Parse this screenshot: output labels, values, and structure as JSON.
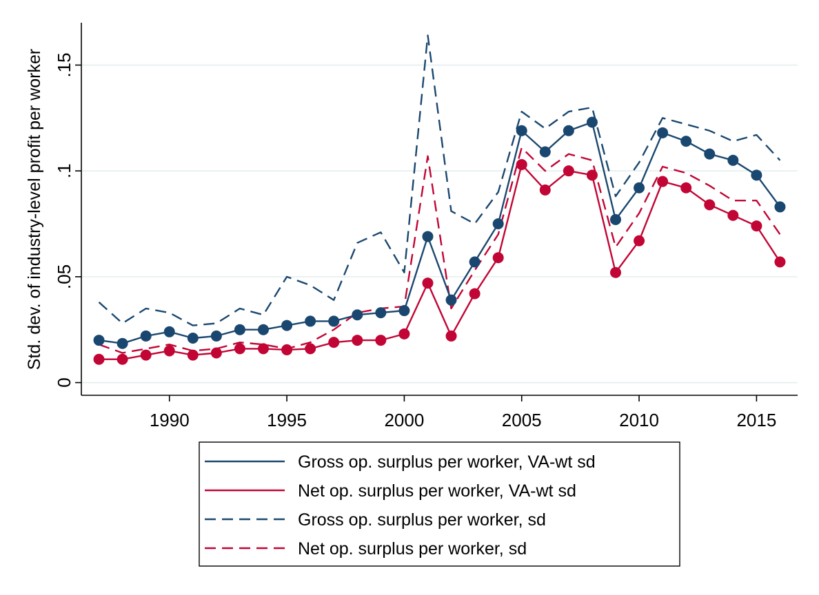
{
  "chart_data": {
    "type": "line",
    "title": "",
    "xlabel": "",
    "ylabel": "Std. dev. of industry-level profit per worker",
    "x": [
      1987,
      1988,
      1989,
      1990,
      1991,
      1992,
      1993,
      1994,
      1995,
      1996,
      1997,
      1998,
      1999,
      2000,
      2001,
      2002,
      2003,
      2004,
      2005,
      2006,
      2007,
      2008,
      2009,
      2010,
      2011,
      2012,
      2013,
      2014,
      2015,
      2016
    ],
    "xlim": [
      1986.25,
      2016.75
    ],
    "ylim": [
      -0.006,
      0.17
    ],
    "x_ticks": [
      1990,
      1995,
      2000,
      2005,
      2010,
      2015
    ],
    "x_tick_labels": [
      "1990",
      "1995",
      "2000",
      "2005",
      "2010",
      "2015"
    ],
    "y_ticks": [
      0,
      0.05,
      0.1,
      0.15
    ],
    "y_tick_labels": [
      "0",
      ".05",
      ".1",
      ".15"
    ],
    "grid": true,
    "legend_position": "bottom",
    "series": [
      {
        "name": "Gross op. surplus per worker, VA-wt sd",
        "color": "#1a476f",
        "dash": "solid",
        "markers": true,
        "values": [
          0.02,
          0.0185,
          0.022,
          0.024,
          0.021,
          0.022,
          0.025,
          0.025,
          0.027,
          0.029,
          0.029,
          0.032,
          0.033,
          0.034,
          0.069,
          0.039,
          0.057,
          0.075,
          0.119,
          0.109,
          0.119,
          0.123,
          0.077,
          0.092,
          0.118,
          0.114,
          0.108,
          0.105,
          0.098,
          0.083
        ]
      },
      {
        "name": "Net op. surplus per worker, VA-wt sd",
        "color": "#c10534",
        "dash": "solid",
        "markers": true,
        "values": [
          0.011,
          0.011,
          0.013,
          0.015,
          0.013,
          0.014,
          0.016,
          0.016,
          0.0155,
          0.016,
          0.019,
          0.02,
          0.02,
          0.023,
          0.047,
          0.022,
          0.042,
          0.059,
          0.103,
          0.091,
          0.1,
          0.098,
          0.052,
          0.067,
          0.095,
          0.092,
          0.084,
          0.079,
          0.074,
          0.057
        ]
      },
      {
        "name": "Gross op. surplus per worker, sd",
        "color": "#1a476f",
        "dash": "dashed",
        "markers": false,
        "values": [
          0.038,
          0.028,
          0.035,
          0.033,
          0.027,
          0.028,
          0.035,
          0.032,
          0.05,
          0.046,
          0.039,
          0.066,
          0.071,
          0.052,
          0.164,
          0.081,
          0.075,
          0.09,
          0.128,
          0.12,
          0.128,
          0.13,
          0.088,
          0.104,
          0.125,
          0.122,
          0.119,
          0.114,
          0.117,
          0.105
        ]
      },
      {
        "name": "Net op. surplus per worker, sd",
        "color": "#c10534",
        "dash": "dashed",
        "markers": false,
        "values": [
          0.018,
          0.014,
          0.016,
          0.018,
          0.015,
          0.016,
          0.019,
          0.018,
          0.016,
          0.019,
          0.025,
          0.033,
          0.035,
          0.036,
          0.107,
          0.035,
          0.053,
          0.07,
          0.111,
          0.1,
          0.108,
          0.105,
          0.064,
          0.08,
          0.102,
          0.099,
          0.093,
          0.086,
          0.086,
          0.07
        ]
      }
    ]
  }
}
